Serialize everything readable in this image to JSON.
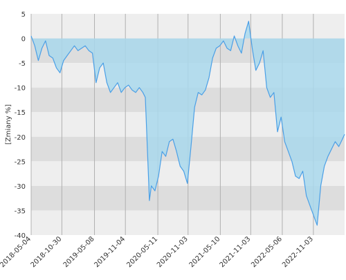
{
  "chart_data": {
    "type": "area",
    "title": "",
    "xlabel": "",
    "ylabel": "[Zmiany %]",
    "xlim": [
      "2018-05-04",
      "2023-05-04"
    ],
    "ylim": [
      -40,
      5
    ],
    "yticks": [
      5,
      0,
      -5,
      -10,
      -15,
      -20,
      -25,
      -30,
      -35,
      -40
    ],
    "xticks": [
      "2018-05-04",
      "2018-10-30",
      "2019-05-08",
      "2019-11-04",
      "2020-05-11",
      "2020-11-03",
      "2021-05-10",
      "2021-11-03",
      "2022-05-06",
      "2022-11-03"
    ],
    "grid": true,
    "legend": "none",
    "colors": {
      "line": "#4a9fe6",
      "fill": "#a9d8ec",
      "band_light": "#eeeeee",
      "band_dark": "#dddddd",
      "grid": "#b0b0b0"
    },
    "series": [
      {
        "x": [
          "2018-05-04",
          "2018-05-25",
          "2018-06-15",
          "2018-07-06",
          "2018-07-27",
          "2018-08-17",
          "2018-09-07",
          "2018-09-28",
          "2018-10-19",
          "2018-11-09",
          "2018-11-30",
          "2018-12-21",
          "2019-01-11",
          "2019-02-01",
          "2019-02-22",
          "2019-03-15",
          "2019-04-05",
          "2019-04-26",
          "2019-05-17",
          "2019-06-07",
          "2019-06-28",
          "2019-07-19",
          "2019-08-09",
          "2019-08-30",
          "2019-09-20",
          "2019-10-11",
          "2019-11-01",
          "2019-11-22",
          "2019-12-13",
          "2020-01-03",
          "2020-01-24",
          "2020-02-14",
          "2020-02-28",
          "2020-03-13",
          "2020-03-23",
          "2020-04-03",
          "2020-04-24",
          "2020-05-15",
          "2020-06-05",
          "2020-06-26",
          "2020-07-17",
          "2020-08-07",
          "2020-08-28",
          "2020-09-18",
          "2020-10-09",
          "2020-10-30",
          "2020-11-20",
          "2020-12-11",
          "2021-01-01",
          "2021-01-22",
          "2021-02-12",
          "2021-03-05",
          "2021-03-26",
          "2021-04-16",
          "2021-05-07",
          "2021-05-28",
          "2021-06-18",
          "2021-07-09",
          "2021-07-30",
          "2021-08-20",
          "2021-09-10",
          "2021-10-01",
          "2021-10-22",
          "2021-11-12",
          "2021-12-03",
          "2021-12-24",
          "2022-01-14",
          "2022-02-04",
          "2022-02-25",
          "2022-03-18",
          "2022-04-08",
          "2022-04-29",
          "2022-05-20",
          "2022-06-10",
          "2022-07-01",
          "2022-07-22",
          "2022-08-12",
          "2022-09-02",
          "2022-09-23",
          "2022-10-14",
          "2022-11-04",
          "2022-11-25",
          "2022-12-16",
          "2023-01-06",
          "2023-01-27",
          "2023-02-17",
          "2023-03-10",
          "2023-03-31",
          "2023-04-21",
          "2023-05-04"
        ],
        "y": [
          0.5,
          -1.5,
          -4.5,
          -2.0,
          -0.5,
          -3.5,
          -4.0,
          -6.0,
          -7.0,
          -4.5,
          -3.5,
          -2.5,
          -1.5,
          -2.5,
          -2.0,
          -1.5,
          -2.5,
          -3.0,
          -9.0,
          -6.0,
          -5.0,
          -9.0,
          -11.0,
          -10.0,
          -9.0,
          -11.0,
          -10.0,
          -9.5,
          -10.5,
          -11.0,
          -10.0,
          -11.0,
          -12.0,
          -24.0,
          -33.0,
          -30.0,
          -31.0,
          -28.0,
          -23.0,
          -24.0,
          -21.0,
          -20.5,
          -23.0,
          -26.0,
          -27.0,
          -29.5,
          -22.0,
          -14.0,
          -11.0,
          -11.5,
          -10.5,
          -8.0,
          -4.0,
          -2.0,
          -1.5,
          -0.5,
          -2.0,
          -2.5,
          0.5,
          -1.5,
          -3.0,
          1.0,
          3.5,
          -2.0,
          -6.5,
          -5.0,
          -2.5,
          -10.0,
          -12.0,
          -11.0,
          -19.0,
          -16.0,
          -21.0,
          -23.0,
          -25.0,
          -28.0,
          -28.5,
          -27.0,
          -32.0,
          -34.0,
          -36.0,
          -38.0,
          -30.0,
          -26.0,
          -24.0,
          -22.5,
          -21.0,
          -22.0,
          -20.5,
          -19.5
        ]
      }
    ]
  }
}
